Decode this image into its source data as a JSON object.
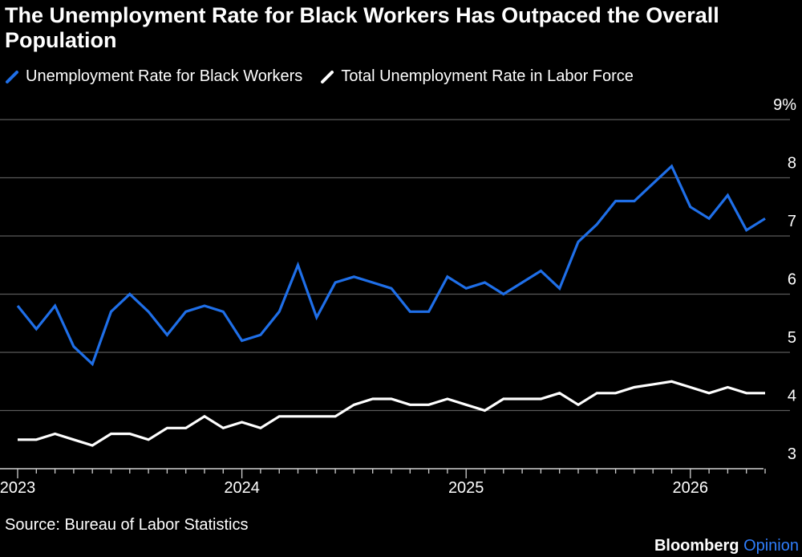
{
  "header": {
    "title": "The Unemployment Rate for Black Workers Has Outpaced the Overall Population"
  },
  "legend": [
    {
      "label": "Unemployment Rate for Black Workers",
      "color": "#1f6fe8",
      "icon": "slash-stroke-icon"
    },
    {
      "label": "Total Unemployment Rate in Labor Force",
      "color": "#ffffff",
      "icon": "slash-stroke-icon"
    }
  ],
  "footer": {
    "source": "Source: Bureau of Labor Statistics",
    "brand_name": "Bloomberg",
    "brand_suffix": "Opinion"
  },
  "chart_data": {
    "type": "line",
    "x_unit": "month",
    "x": [
      "2023-01",
      "2023-02",
      "2023-03",
      "2023-04",
      "2023-05",
      "2023-06",
      "2023-07",
      "2023-08",
      "2023-09",
      "2023-10",
      "2023-11",
      "2023-12",
      "2024-01",
      "2024-02",
      "2024-03",
      "2024-04",
      "2024-05",
      "2024-06",
      "2024-07",
      "2024-08",
      "2024-09",
      "2024-10",
      "2024-11",
      "2024-12",
      "2025-01",
      "2025-02",
      "2025-03",
      "2025-04",
      "2025-05",
      "2025-06",
      "2025-07",
      "2025-08",
      "2025-09",
      "2025-10",
      "2025-11",
      "2025-12",
      "2026-01",
      "2026-02",
      "2026-03",
      "2026-04",
      "2026-05"
    ],
    "series": [
      {
        "name": "Unemployment Rate for Black Workers",
        "color": "#1f6fe8",
        "values": [
          5.8,
          5.4,
          5.8,
          5.1,
          4.8,
          5.7,
          6.0,
          5.7,
          5.3,
          5.7,
          5.8,
          5.7,
          5.2,
          5.3,
          5.7,
          6.5,
          5.6,
          6.2,
          6.3,
          6.2,
          6.1,
          5.7,
          5.7,
          6.3,
          6.1,
          6.2,
          6.0,
          6.2,
          6.4,
          6.1,
          6.9,
          7.2,
          7.6,
          7.6,
          7.9,
          8.2,
          7.5,
          7.3,
          7.7,
          7.1,
          7.3
        ]
      },
      {
        "name": "Total Unemployment Rate in Labor Force",
        "color": "#ffffff",
        "values": [
          3.5,
          3.5,
          3.6,
          3.5,
          3.4,
          3.6,
          3.6,
          3.5,
          3.7,
          3.7,
          3.9,
          3.7,
          3.8,
          3.7,
          3.9,
          3.9,
          3.9,
          3.9,
          4.1,
          4.2,
          4.2,
          4.1,
          4.1,
          4.2,
          4.1,
          4.0,
          4.2,
          4.2,
          4.2,
          4.3,
          4.1,
          4.3,
          4.3,
          4.4,
          4.45,
          4.5,
          4.4,
          4.3,
          4.4,
          4.3,
          4.3
        ]
      }
    ],
    "x_ticks": [
      {
        "label": "2023",
        "x": "2023-01"
      },
      {
        "label": "2024",
        "x": "2024-01"
      },
      {
        "label": "2025",
        "x": "2025-01"
      },
      {
        "label": "2026",
        "x": "2026-01"
      }
    ],
    "y_ticks": [
      {
        "label": "9%",
        "value": 9
      },
      {
        "label": "8",
        "value": 8
      },
      {
        "label": "7",
        "value": 7
      },
      {
        "label": "6",
        "value": 6
      },
      {
        "label": "5",
        "value": 5
      },
      {
        "label": "4",
        "value": 4
      },
      {
        "label": "3",
        "value": 3
      }
    ],
    "ylim": [
      3,
      9
    ],
    "grid": true,
    "legend_position": "top-left",
    "title": "The Unemployment Rate for Black Workers Has Outpaced the Overall Population",
    "xlabel": "",
    "ylabel": ""
  }
}
